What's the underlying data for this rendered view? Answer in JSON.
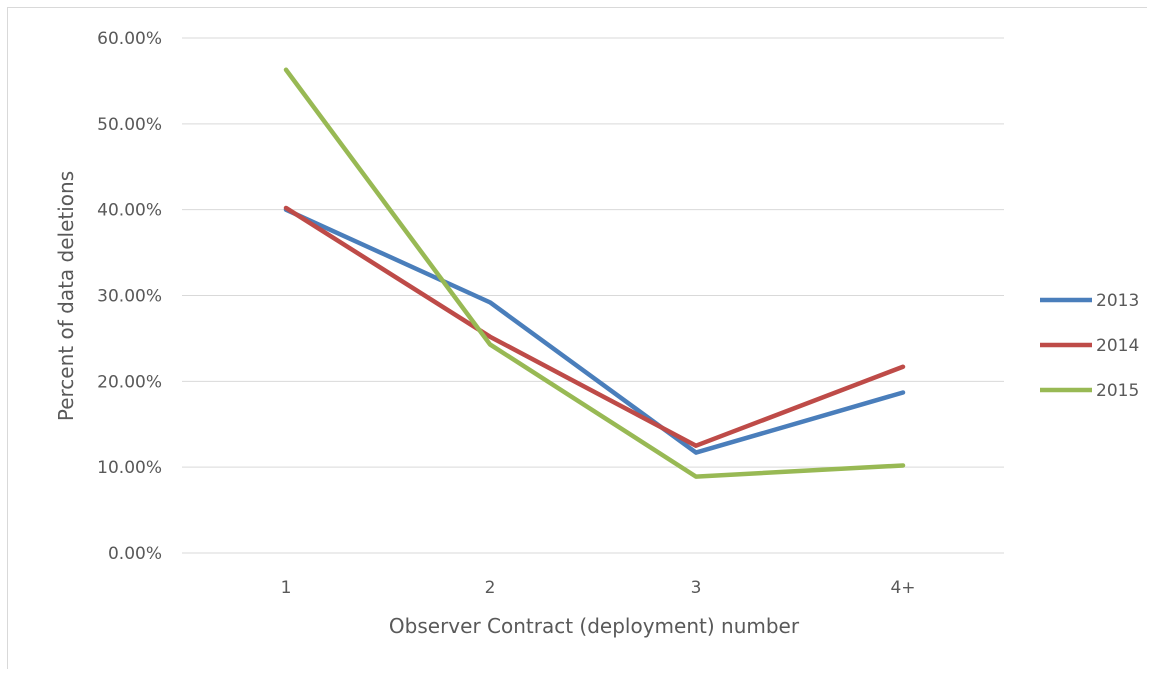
{
  "chart_data": {
    "type": "line",
    "categories": [
      "1",
      "2",
      "3",
      "4+"
    ],
    "series": [
      {
        "name": "2013",
        "color": "#4a7ebb",
        "values": [
          0.4,
          0.292,
          0.117,
          0.187
        ]
      },
      {
        "name": "2014",
        "color": "#be4b48",
        "values": [
          0.402,
          0.252,
          0.125,
          0.217
        ]
      },
      {
        "name": "2015",
        "color": "#98b954",
        "values": [
          0.563,
          0.243,
          0.089,
          0.102
        ]
      }
    ],
    "title": "",
    "xlabel": "Observer Contract (deployment) number",
    "ylabel": "Percent of data deletions",
    "ylim": [
      0,
      0.6
    ],
    "yticks": [
      0,
      0.1,
      0.2,
      0.3,
      0.4,
      0.5,
      0.6
    ],
    "ytick_labels": [
      "0.00%",
      "10.00%",
      "20.00%",
      "30.00%",
      "40.00%",
      "50.00%",
      "60.00%"
    ],
    "grid": true,
    "legend_position": "right"
  }
}
